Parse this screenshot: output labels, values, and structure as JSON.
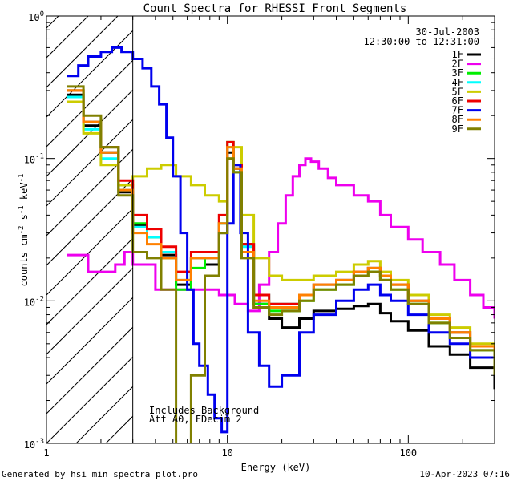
{
  "chart_data": {
    "type": "line",
    "title": "Count Spectra for RHESSI Front Segments",
    "xlabel": "Energy (keV)",
    "ylabel": "counts cm-2 s-1 keV-1",
    "xscale": "log",
    "yscale": "log",
    "xlim": [
      1,
      300
    ],
    "ylim": [
      0.001,
      1
    ],
    "x_tick_labels": [
      {
        "value": 1,
        "label": "1"
      },
      {
        "value": 10,
        "label": "10"
      },
      {
        "value": 100,
        "label": "100"
      }
    ],
    "y_tick_labels": [
      {
        "value": 1,
        "base": "10",
        "exp": "0"
      },
      {
        "value": 0.1,
        "base": "10",
        "exp": "-1"
      },
      {
        "value": 0.01,
        "base": "10",
        "exp": "-2"
      },
      {
        "value": 0.001,
        "base": "10",
        "exp": "-3"
      }
    ],
    "attenuator_cutoff_keV": 3,
    "annotations": {
      "date": "30-Jul-2003",
      "time_range": "12:30:00 to 12:31:00",
      "background_note": "Includes Background",
      "attenuator_note": "Att A0, FDecim 2"
    },
    "legend_position": "top-right",
    "series": [
      {
        "name": "1F",
        "color": "#000000",
        "points": [
          [
            1.3,
            0.28
          ],
          [
            1.6,
            0.17
          ],
          [
            2.0,
            0.11
          ],
          [
            2.5,
            0.058
          ],
          [
            3.0,
            0.034
          ],
          [
            3.6,
            0.028
          ],
          [
            4.3,
            0.021
          ],
          [
            5.2,
            0.013
          ],
          [
            6.3,
            0.02
          ],
          [
            7.5,
            0.018
          ],
          [
            9.0,
            0.03
          ],
          [
            10.0,
            0.11
          ],
          [
            10.8,
            0.085
          ],
          [
            12.0,
            0.025
          ],
          [
            14.0,
            0.0095
          ],
          [
            17.0,
            0.0075
          ],
          [
            20.0,
            0.0065
          ],
          [
            25.0,
            0.0075
          ],
          [
            30.0,
            0.0085
          ],
          [
            40.0,
            0.0088
          ],
          [
            50.0,
            0.0092
          ],
          [
            60.0,
            0.0095
          ],
          [
            70.0,
            0.0082
          ],
          [
            80.0,
            0.0072
          ],
          [
            100.0,
            0.0062
          ],
          [
            130.0,
            0.0048
          ],
          [
            170.0,
            0.0042
          ],
          [
            220.0,
            0.0034
          ],
          [
            300.0,
            0.0024
          ]
        ]
      },
      {
        "name": "2F",
        "color": "#ee00ee",
        "points": [
          [
            1.3,
            0.021
          ],
          [
            1.5,
            0.021
          ],
          [
            1.7,
            0.016
          ],
          [
            2.0,
            0.016
          ],
          [
            2.4,
            0.018
          ],
          [
            2.7,
            0.022
          ],
          [
            3.0,
            0.018
          ],
          [
            4.0,
            0.012
          ],
          [
            5.5,
            0.012
          ],
          [
            7.0,
            0.012
          ],
          [
            9.0,
            0.011
          ],
          [
            11.0,
            0.0095
          ],
          [
            13.0,
            0.0085
          ],
          [
            15.0,
            0.013
          ],
          [
            17.0,
            0.022
          ],
          [
            19.0,
            0.035
          ],
          [
            21.0,
            0.055
          ],
          [
            23.0,
            0.075
          ],
          [
            25.0,
            0.09
          ],
          [
            27.0,
            0.1
          ],
          [
            29.0,
            0.095
          ],
          [
            32.0,
            0.085
          ],
          [
            36.0,
            0.073
          ],
          [
            40.0,
            0.065
          ],
          [
            50.0,
            0.055
          ],
          [
            60.0,
            0.05
          ],
          [
            70.0,
            0.04
          ],
          [
            80.0,
            0.033
          ],
          [
            100.0,
            0.027
          ],
          [
            120.0,
            0.022
          ],
          [
            150.0,
            0.018
          ],
          [
            180.0,
            0.014
          ],
          [
            220.0,
            0.011
          ],
          [
            260.0,
            0.009
          ],
          [
            300.0,
            0.0075
          ]
        ]
      },
      {
        "name": "3F",
        "color": "#00ee00",
        "points": [
          [
            1.3,
            0.3
          ],
          [
            1.6,
            0.18
          ],
          [
            2.0,
            0.12
          ],
          [
            2.5,
            0.065
          ],
          [
            3.0,
            0.035
          ],
          [
            3.6,
            0.028
          ],
          [
            4.3,
            0.02
          ],
          [
            5.2,
            0.012
          ],
          [
            6.3,
            0.017
          ],
          [
            7.5,
            0.02
          ],
          [
            9.0,
            0.035
          ],
          [
            10.0,
            0.13
          ],
          [
            10.8,
            0.08
          ],
          [
            12.0,
            0.022
          ],
          [
            14.0,
            0.0095
          ],
          [
            17.0,
            0.0085
          ],
          [
            20.0,
            0.0085
          ],
          [
            25.0,
            0.01
          ],
          [
            30.0,
            0.012
          ],
          [
            40.0,
            0.013
          ],
          [
            50.0,
            0.015
          ],
          [
            60.0,
            0.016
          ],
          [
            70.0,
            0.014
          ],
          [
            80.0,
            0.012
          ],
          [
            100.0,
            0.0095
          ],
          [
            130.0,
            0.007
          ],
          [
            170.0,
            0.0055
          ],
          [
            220.0,
            0.0045
          ],
          [
            300.0,
            0.003
          ]
        ]
      },
      {
        "name": "4F",
        "color": "#00ffff",
        "points": [
          [
            1.3,
            0.27
          ],
          [
            1.6,
            0.16
          ],
          [
            2.0,
            0.1
          ],
          [
            2.5,
            0.06
          ],
          [
            3.0,
            0.033
          ],
          [
            3.6,
            0.028
          ],
          [
            4.3,
            0.022
          ],
          [
            5.2,
            0.014
          ],
          [
            6.3,
            0.02
          ],
          [
            7.5,
            0.02
          ],
          [
            9.0,
            0.035
          ],
          [
            10.0,
            0.12
          ],
          [
            10.8,
            0.08
          ],
          [
            12.0,
            0.024
          ],
          [
            14.0,
            0.011
          ],
          [
            17.0,
            0.0095
          ],
          [
            20.0,
            0.0095
          ],
          [
            25.0,
            0.011
          ],
          [
            30.0,
            0.013
          ],
          [
            40.0,
            0.014
          ],
          [
            50.0,
            0.016
          ],
          [
            60.0,
            0.017
          ],
          [
            70.0,
            0.015
          ],
          [
            80.0,
            0.013
          ],
          [
            100.0,
            0.01
          ],
          [
            130.0,
            0.0075
          ],
          [
            170.0,
            0.006
          ],
          [
            220.0,
            0.0048
          ],
          [
            300.0,
            0.0032
          ]
        ]
      },
      {
        "name": "5F",
        "color": "#cccc00",
        "points": [
          [
            1.3,
            0.25
          ],
          [
            1.6,
            0.15
          ],
          [
            2.0,
            0.09
          ],
          [
            2.5,
            0.065
          ],
          [
            3.0,
            0.075
          ],
          [
            3.6,
            0.085
          ],
          [
            4.3,
            0.09
          ],
          [
            5.2,
            0.075
          ],
          [
            6.3,
            0.065
          ],
          [
            7.5,
            0.055
          ],
          [
            9.0,
            0.05
          ],
          [
            10.0,
            0.1
          ],
          [
            10.8,
            0.12
          ],
          [
            12.0,
            0.04
          ],
          [
            14.0,
            0.02
          ],
          [
            17.0,
            0.015
          ],
          [
            20.0,
            0.014
          ],
          [
            25.0,
            0.014
          ],
          [
            30.0,
            0.015
          ],
          [
            40.0,
            0.016
          ],
          [
            50.0,
            0.018
          ],
          [
            60.0,
            0.019
          ],
          [
            70.0,
            0.016
          ],
          [
            80.0,
            0.014
          ],
          [
            100.0,
            0.011
          ],
          [
            130.0,
            0.008
          ],
          [
            170.0,
            0.0065
          ],
          [
            220.0,
            0.005
          ],
          [
            300.0,
            0.0033
          ]
        ]
      },
      {
        "name": "6F",
        "color": "#ee0000",
        "points": [
          [
            1.3,
            0.3
          ],
          [
            1.6,
            0.18
          ],
          [
            2.0,
            0.12
          ],
          [
            2.5,
            0.07
          ],
          [
            3.0,
            0.04
          ],
          [
            3.6,
            0.032
          ],
          [
            4.3,
            0.024
          ],
          [
            5.2,
            0.016
          ],
          [
            6.3,
            0.022
          ],
          [
            7.5,
            0.022
          ],
          [
            9.0,
            0.04
          ],
          [
            10.0,
            0.13
          ],
          [
            10.8,
            0.09
          ],
          [
            12.0,
            0.025
          ],
          [
            14.0,
            0.011
          ],
          [
            17.0,
            0.0095
          ],
          [
            20.0,
            0.0095
          ],
          [
            25.0,
            0.011
          ],
          [
            30.0,
            0.013
          ],
          [
            40.0,
            0.014
          ],
          [
            50.0,
            0.016
          ],
          [
            60.0,
            0.017
          ],
          [
            70.0,
            0.015
          ],
          [
            80.0,
            0.013
          ],
          [
            100.0,
            0.01
          ],
          [
            130.0,
            0.0075
          ],
          [
            170.0,
            0.006
          ],
          [
            220.0,
            0.0048
          ],
          [
            300.0,
            0.0032
          ]
        ]
      },
      {
        "name": "7F",
        "color": "#0000ee",
        "points": [
          [
            1.3,
            0.38
          ],
          [
            1.5,
            0.45
          ],
          [
            1.7,
            0.52
          ],
          [
            2.0,
            0.56
          ],
          [
            2.3,
            0.6
          ],
          [
            2.6,
            0.56
          ],
          [
            3.0,
            0.5
          ],
          [
            3.4,
            0.43
          ],
          [
            3.8,
            0.32
          ],
          [
            4.2,
            0.24
          ],
          [
            4.6,
            0.14
          ],
          [
            5.0,
            0.075
          ],
          [
            5.5,
            0.03
          ],
          [
            6.0,
            0.012
          ],
          [
            6.5,
            0.005
          ],
          [
            7.0,
            0.0035
          ],
          [
            7.8,
            0.0022
          ],
          [
            8.5,
            0.0015
          ],
          [
            9.3,
            0.0012
          ],
          [
            10.0,
            0.035
          ],
          [
            10.8,
            0.09
          ],
          [
            11.8,
            0.03
          ],
          [
            13.0,
            0.006
          ],
          [
            15.0,
            0.0035
          ],
          [
            17.0,
            0.0025
          ],
          [
            20.0,
            0.003
          ],
          [
            25.0,
            0.006
          ],
          [
            30.0,
            0.008
          ],
          [
            40.0,
            0.01
          ],
          [
            50.0,
            0.012
          ],
          [
            60.0,
            0.013
          ],
          [
            70.0,
            0.011
          ],
          [
            80.0,
            0.01
          ],
          [
            100.0,
            0.008
          ],
          [
            130.0,
            0.006
          ],
          [
            170.0,
            0.005
          ],
          [
            220.0,
            0.004
          ],
          [
            300.0,
            0.003
          ]
        ]
      },
      {
        "name": "8F",
        "color": "#ff8000",
        "points": [
          [
            1.3,
            0.3
          ],
          [
            1.6,
            0.18
          ],
          [
            2.0,
            0.11
          ],
          [
            2.5,
            0.06
          ],
          [
            3.0,
            0.03
          ],
          [
            3.6,
            0.025
          ],
          [
            4.3,
            0.02
          ],
          [
            5.2,
            0.014
          ],
          [
            6.3,
            0.02
          ],
          [
            7.5,
            0.02
          ],
          [
            9.0,
            0.035
          ],
          [
            10.0,
            0.12
          ],
          [
            10.8,
            0.085
          ],
          [
            12.0,
            0.022
          ],
          [
            14.0,
            0.01
          ],
          [
            17.0,
            0.009
          ],
          [
            20.0,
            0.009
          ],
          [
            25.0,
            0.011
          ],
          [
            30.0,
            0.013
          ],
          [
            40.0,
            0.014
          ],
          [
            50.0,
            0.016
          ],
          [
            60.0,
            0.017
          ],
          [
            70.0,
            0.015
          ],
          [
            80.0,
            0.013
          ],
          [
            100.0,
            0.01
          ],
          [
            130.0,
            0.0075
          ],
          [
            170.0,
            0.006
          ],
          [
            220.0,
            0.0048
          ],
          [
            300.0,
            0.003
          ]
        ]
      },
      {
        "name": "9F",
        "color": "#808000",
        "points": [
          [
            1.3,
            0.32
          ],
          [
            1.6,
            0.2
          ],
          [
            2.0,
            0.12
          ],
          [
            2.5,
            0.055
          ],
          [
            3.0,
            0.022
          ],
          [
            3.6,
            0.02
          ],
          [
            4.3,
            0.012
          ],
          [
            5.2,
            0.0009
          ],
          [
            6.3,
            0.003
          ],
          [
            7.5,
            0.015
          ],
          [
            9.0,
            0.03
          ],
          [
            10.0,
            0.1
          ],
          [
            10.8,
            0.08
          ],
          [
            12.0,
            0.02
          ],
          [
            14.0,
            0.009
          ],
          [
            17.0,
            0.008
          ],
          [
            20.0,
            0.0085
          ],
          [
            25.0,
            0.01
          ],
          [
            30.0,
            0.012
          ],
          [
            40.0,
            0.013
          ],
          [
            50.0,
            0.015
          ],
          [
            60.0,
            0.016
          ],
          [
            70.0,
            0.014
          ],
          [
            80.0,
            0.012
          ],
          [
            100.0,
            0.0095
          ],
          [
            130.0,
            0.007
          ],
          [
            170.0,
            0.0055
          ],
          [
            220.0,
            0.0045
          ],
          [
            300.0,
            0.003
          ]
        ]
      }
    ]
  },
  "footer": {
    "generator": "Generated by hsi_min_spectra_plot.pro",
    "timestamp": "10-Apr-2023 07:16"
  }
}
